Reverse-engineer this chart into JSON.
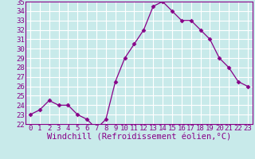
{
  "x": [
    0,
    1,
    2,
    3,
    4,
    5,
    6,
    7,
    8,
    9,
    10,
    11,
    12,
    13,
    14,
    15,
    16,
    17,
    18,
    19,
    20,
    21,
    22,
    23
  ],
  "y": [
    23.0,
    23.5,
    24.5,
    24.0,
    24.0,
    23.0,
    22.5,
    21.5,
    22.5,
    26.5,
    29.0,
    30.5,
    32.0,
    34.5,
    35.0,
    34.0,
    33.0,
    33.0,
    32.0,
    31.0,
    29.0,
    28.0,
    26.5,
    26.0
  ],
  "line_color": "#880088",
  "marker": "D",
  "marker_size": 2.5,
  "bg_color": "#c8eaea",
  "grid_color": "#ffffff",
  "xlabel": "Windchill (Refroidissement éolien,°C)",
  "ylabel": "",
  "ylim": [
    22,
    35
  ],
  "xlim": [
    -0.5,
    23.5
  ],
  "yticks": [
    22,
    23,
    24,
    25,
    26,
    27,
    28,
    29,
    30,
    31,
    32,
    33,
    34,
    35
  ],
  "xticks": [
    0,
    1,
    2,
    3,
    4,
    5,
    6,
    7,
    8,
    9,
    10,
    11,
    12,
    13,
    14,
    15,
    16,
    17,
    18,
    19,
    20,
    21,
    22,
    23
  ],
  "tick_label_fontsize": 6.5,
  "xlabel_fontsize": 7.5,
  "tick_color": "#880088",
  "label_color": "#880088",
  "spine_color": "#880088"
}
